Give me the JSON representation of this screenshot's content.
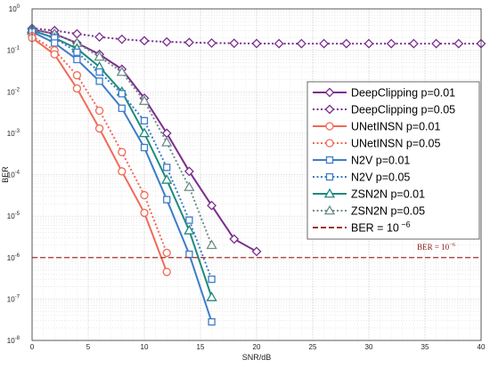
{
  "chart_data": {
    "type": "line",
    "xlabel": "SNR/dB",
    "ylabel": "BER",
    "xlim": [
      0,
      40
    ],
    "ylim": [
      1e-08,
      1
    ],
    "yscale": "log",
    "x_ticks": [
      "0",
      "5",
      "10",
      "15",
      "20",
      "25",
      "30",
      "35",
      "40"
    ],
    "y_ticks": [
      {
        "base": "10",
        "exp": "0"
      },
      {
        "base": "10",
        "exp": "-1"
      },
      {
        "base": "10",
        "exp": "-2"
      },
      {
        "base": "10",
        "exp": "-3"
      },
      {
        "base": "10",
        "exp": "-4"
      },
      {
        "base": "10",
        "exp": "-5"
      },
      {
        "base": "10",
        "exp": "-6"
      },
      {
        "base": "10",
        "exp": "-7"
      },
      {
        "base": "10",
        "exp": "-8"
      }
    ],
    "grid": true,
    "legend_position": "right",
    "annotation": {
      "base": "BER = 10",
      "exp": "−6"
    },
    "series": [
      {
        "name": "DeepClipping p=0.01",
        "color": "#7b2d8e",
        "marker": "diamond",
        "dash": false,
        "x": [
          0,
          2,
          4,
          6,
          8,
          10,
          12,
          14,
          16,
          18,
          20
        ],
        "y": [
          0.32,
          0.25,
          0.15,
          0.08,
          0.035,
          0.007,
          0.001,
          0.00012,
          1.8e-05,
          2.8e-06,
          1.4e-06
        ]
      },
      {
        "name": "DeepClipping p=0.05",
        "color": "#7b2d8e",
        "marker": "diamond",
        "dash": true,
        "x": [
          0,
          2,
          4,
          6,
          8,
          10,
          12,
          14,
          16,
          18,
          20,
          22,
          24,
          26,
          28,
          30,
          32,
          34,
          36,
          38,
          40
        ],
        "y": [
          0.34,
          0.3,
          0.25,
          0.21,
          0.185,
          0.17,
          0.16,
          0.155,
          0.15,
          0.148,
          0.146,
          0.145,
          0.145,
          0.145,
          0.145,
          0.145,
          0.145,
          0.145,
          0.145,
          0.145,
          0.145
        ]
      },
      {
        "name": "UNetINSN p=0.01",
        "color": "#f06a57",
        "marker": "circle",
        "dash": false,
        "x": [
          0,
          2,
          4,
          6,
          8,
          10,
          12
        ],
        "y": [
          0.2,
          0.08,
          0.012,
          0.0013,
          0.00012,
          1.2e-05,
          4.5e-07
        ]
      },
      {
        "name": "UNetINSN p=0.05",
        "color": "#f06a57",
        "marker": "circle",
        "dash": true,
        "x": [
          0,
          2,
          4,
          6,
          8,
          10,
          12
        ],
        "y": [
          0.22,
          0.1,
          0.025,
          0.0035,
          0.00035,
          3.2e-05,
          1.3e-06
        ]
      },
      {
        "name": "N2V p=0.01",
        "color": "#3d7cc9",
        "marker": "square",
        "dash": false,
        "x": [
          0,
          2,
          4,
          6,
          8,
          10,
          12,
          14,
          16
        ],
        "y": [
          0.28,
          0.15,
          0.06,
          0.018,
          0.004,
          0.00045,
          2.5e-05,
          1.2e-06,
          2.8e-08
        ]
      },
      {
        "name": "N2V p=0.05",
        "color": "#3d7cc9",
        "marker": "square",
        "dash": true,
        "x": [
          0,
          2,
          4,
          6,
          8,
          10,
          12,
          14,
          16
        ],
        "y": [
          0.3,
          0.2,
          0.09,
          0.03,
          0.009,
          0.002,
          0.00015,
          8e-06,
          3e-07
        ]
      },
      {
        "name": "ZSN2N p=0.01",
        "color": "#1f8a7a",
        "marker": "triangle",
        "dash": false,
        "x": [
          0,
          2,
          4,
          6,
          8,
          10,
          12,
          14,
          16
        ],
        "y": [
          0.3,
          0.2,
          0.11,
          0.04,
          0.01,
          0.001,
          7.5e-05,
          4.5e-06,
          1.1e-07
        ]
      },
      {
        "name": "ZSN2N p=0.05",
        "color": "#6e8d89",
        "marker": "triangle",
        "dash": true,
        "x": [
          0,
          2,
          4,
          6,
          8,
          10,
          12,
          14,
          16
        ],
        "y": [
          0.33,
          0.25,
          0.15,
          0.07,
          0.03,
          0.006,
          0.0006,
          5e-05,
          2e-06
        ]
      },
      {
        "name": "BER = 10",
        "name_exp": "−6",
        "color": "#a0302a",
        "marker": "none",
        "dash": true,
        "threshold": true,
        "x": [
          0,
          40
        ],
        "y": [
          1e-06,
          1e-06
        ]
      }
    ]
  }
}
